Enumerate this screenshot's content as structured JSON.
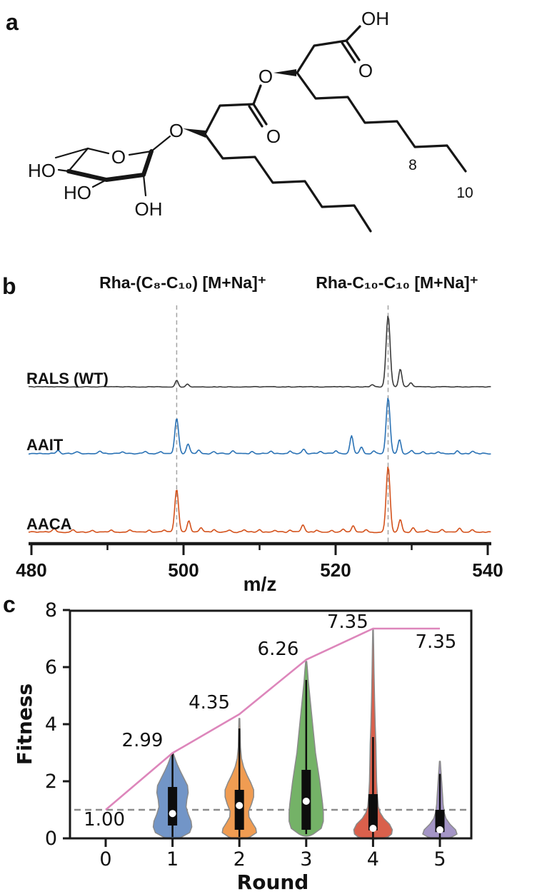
{
  "panel_a": {
    "panel_label": "a",
    "labels": {
      "acid_hydroxyl": "OH",
      "acid_carbonyl_oxygen": "O",
      "ester_oxygen": "O",
      "ester_carbonyl_oxygen": "O",
      "glycosidic_oxygen": "O",
      "ring_oxygen": "O",
      "hydroxyl_left": "HO",
      "hydroxyl_lower_left": "HO",
      "hydroxyl_bottom": "OH",
      "chain_carbon_8": "8",
      "chain_carbon_10": "10"
    }
  },
  "chart_data": [
    {
      "panel_label": "b",
      "type": "line",
      "xlabel": "m/z",
      "xlim": [
        480,
        540
      ],
      "x_major_ticks": [
        480,
        500,
        520,
        540
      ],
      "x_minor_ticks": [
        490,
        510,
        530
      ],
      "dashed_guides_mz": [
        499.1,
        526.9
      ],
      "peak_labels": [
        "Rha-(C₈-C₁₀) [M+Na]⁺",
        "Rha-C₁₀-C₁₀ [M+Na]⁺"
      ],
      "series": [
        {
          "name": "RALS (WT)",
          "color": "#3b3b3b",
          "noise_amp": 1.3,
          "peaks": [
            [
              499.1,
              9
            ],
            [
              500.5,
              4
            ],
            [
              524.8,
              3
            ],
            [
              526.9,
              100,
              2.8
            ],
            [
              528.5,
              25
            ],
            [
              529.9,
              6
            ]
          ]
        },
        {
          "name": "AAIT",
          "color": "#2a72b5",
          "noise_amp": 2.0,
          "peaks": [
            [
              483.5,
              4
            ],
            [
              486,
              3
            ],
            [
              489,
              4
            ],
            [
              492,
              3
            ],
            [
              495,
              3
            ],
            [
              497,
              3
            ],
            [
              499.1,
              49,
              2.6
            ],
            [
              500.6,
              14
            ],
            [
              502,
              5
            ],
            [
              504,
              3
            ],
            [
              506.5,
              4
            ],
            [
              509,
              3
            ],
            [
              511.5,
              3
            ],
            [
              514,
              4
            ],
            [
              515.8,
              6
            ],
            [
              518,
              3
            ],
            [
              520,
              4
            ],
            [
              522.1,
              25
            ],
            [
              523.4,
              9
            ],
            [
              525,
              4
            ],
            [
              526.9,
              79,
              2.7
            ],
            [
              528.4,
              20
            ],
            [
              530,
              5
            ],
            [
              531.5,
              3
            ],
            [
              533.5,
              3
            ],
            [
              536,
              4
            ],
            [
              538,
              3
            ]
          ]
        },
        {
          "name": "AACA",
          "color": "#d4521c",
          "noise_amp": 2.0,
          "peaks": [
            [
              483,
              5
            ],
            [
              485.5,
              3
            ],
            [
              488,
              3
            ],
            [
              490.5,
              3
            ],
            [
              493,
              3
            ],
            [
              495.5,
              3
            ],
            [
              497.5,
              3
            ],
            [
              499.1,
              60,
              2.6
            ],
            [
              500.7,
              16
            ],
            [
              502.3,
              6
            ],
            [
              504,
              3
            ],
            [
              506,
              3
            ],
            [
              508,
              3
            ],
            [
              510,
              3
            ],
            [
              512,
              3
            ],
            [
              514,
              3
            ],
            [
              515.7,
              10
            ],
            [
              517.5,
              3
            ],
            [
              519.5,
              3
            ],
            [
              521,
              4
            ],
            [
              522.3,
              9
            ],
            [
              524,
              4
            ],
            [
              526.9,
              92,
              2.7
            ],
            [
              528.5,
              18
            ],
            [
              530.2,
              6
            ],
            [
              532,
              3
            ],
            [
              534,
              3
            ],
            [
              536.3,
              5
            ],
            [
              538,
              3
            ]
          ]
        }
      ]
    },
    {
      "panel_label": "c",
      "type": "violin",
      "xlabel": "Round",
      "ylabel": "Fitness",
      "x_ticks": [
        "0",
        "1",
        "2",
        "3",
        "4",
        "5"
      ],
      "y_ticks": [
        "0",
        "2",
        "4",
        "6",
        "8"
      ],
      "ylim": [
        0,
        8
      ],
      "reference_line": {
        "y": 1.0,
        "style": "dashed",
        "color": "#8c8c8c"
      },
      "max_line": {
        "color": "#dd86bb",
        "points": [
          [
            0,
            1.0
          ],
          [
            1,
            2.99
          ],
          [
            2,
            4.35
          ],
          [
            3,
            6.26
          ],
          [
            4,
            7.35
          ],
          [
            5,
            7.35
          ]
        ]
      },
      "annotations": [
        {
          "label": "1.00",
          "x": -0.02,
          "y": 0.675
        },
        {
          "label": "2.99",
          "x": 0.55,
          "y": 3.45
        },
        {
          "label": "4.35",
          "x": 1.55,
          "y": 4.78
        },
        {
          "label": "6.26",
          "x": 2.58,
          "y": 6.65
        },
        {
          "label": "7.35",
          "x": 3.62,
          "y": 7.6
        },
        {
          "label": "7.35",
          "x": 4.94,
          "y": 6.9
        }
      ],
      "violins": [
        {
          "round": 1,
          "color": "#7295c7",
          "edge": "#8a8a8a",
          "tip": 2.99,
          "median": 0.87,
          "box": [
            0.45,
            1.8
          ],
          "whiskers": [
            0.05,
            2.99
          ],
          "profile": [
            [
              0.05,
              13
            ],
            [
              0.2,
              24
            ],
            [
              0.4,
              27
            ],
            [
              0.6,
              26
            ],
            [
              0.85,
              22
            ],
            [
              1.1,
              19
            ],
            [
              1.35,
              20
            ],
            [
              1.6,
              22
            ],
            [
              1.85,
              21
            ],
            [
              2.1,
              16
            ],
            [
              2.35,
              11
            ],
            [
              2.6,
              6.5
            ],
            [
              2.8,
              3.5
            ],
            [
              2.99,
              1
            ]
          ]
        },
        {
          "round": 2,
          "color": "#f09c52",
          "edge": "#8a8a8a",
          "tip": 4.2,
          "median": 1.15,
          "box": [
            0.3,
            1.7
          ],
          "whiskers": [
            0.05,
            3.85
          ],
          "profile": [
            [
              0.05,
              15
            ],
            [
              0.2,
              24
            ],
            [
              0.35,
              23
            ],
            [
              0.55,
              18
            ],
            [
              0.75,
              13.5
            ],
            [
              0.95,
              13
            ],
            [
              1.2,
              17
            ],
            [
              1.45,
              20
            ],
            [
              1.7,
              20
            ],
            [
              1.95,
              16
            ],
            [
              2.2,
              11
            ],
            [
              2.5,
              6
            ],
            [
              2.8,
              3
            ],
            [
              3.2,
              1.5
            ],
            [
              4.2,
              0.6
            ]
          ]
        },
        {
          "round": 3,
          "color": "#74b267",
          "edge": "#8a8a8a",
          "tip": 6.2,
          "median": 1.3,
          "box": [
            0.3,
            2.4
          ],
          "whiskers": [
            0.15,
            5.55
          ],
          "profile": [
            [
              0.15,
              10
            ],
            [
              0.35,
              21
            ],
            [
              0.6,
              24
            ],
            [
              0.9,
              24
            ],
            [
              1.2,
              23
            ],
            [
              1.6,
              21
            ],
            [
              2.0,
              19
            ],
            [
              2.5,
              16
            ],
            [
              3.0,
              13
            ],
            [
              3.5,
              11
            ],
            [
              4.0,
              9
            ],
            [
              4.5,
              7
            ],
            [
              5.0,
              5
            ],
            [
              5.5,
              3
            ],
            [
              5.9,
              1.8
            ],
            [
              6.2,
              0.7
            ]
          ]
        },
        {
          "round": 4,
          "color": "#d9604c",
          "edge": "#8a8a8a",
          "tip": 7.33,
          "median": 0.35,
          "box": [
            0.28,
            1.55
          ],
          "whiskers": [
            0.03,
            3.55
          ],
          "profile": [
            [
              0.05,
              21
            ],
            [
              0.15,
              26
            ],
            [
              0.3,
              27
            ],
            [
              0.5,
              23
            ],
            [
              0.7,
              15
            ],
            [
              0.9,
              10
            ],
            [
              1.1,
              7.5
            ],
            [
              1.5,
              6
            ],
            [
              2.0,
              5
            ],
            [
              2.6,
              4.5
            ],
            [
              3.3,
              4
            ],
            [
              4.0,
              3
            ],
            [
              4.8,
              2.2
            ],
            [
              5.8,
              1.4
            ],
            [
              6.8,
              0.8
            ],
            [
              7.33,
              0.4
            ]
          ]
        },
        {
          "round": 5,
          "color": "#a495c6",
          "edge": "#8a8a8a",
          "tip": 2.7,
          "median": 0.3,
          "box": [
            0.22,
            1.0
          ],
          "whiskers": [
            0.03,
            2.26
          ],
          "profile": [
            [
              0.05,
              17
            ],
            [
              0.15,
              24
            ],
            [
              0.3,
              22
            ],
            [
              0.5,
              14
            ],
            [
              0.7,
              8.5
            ],
            [
              0.9,
              6
            ],
            [
              1.2,
              4.5
            ],
            [
              1.5,
              3.8
            ],
            [
              1.8,
              3
            ],
            [
              2.1,
              2.2
            ],
            [
              2.4,
              1.4
            ],
            [
              2.7,
              0.6
            ]
          ]
        }
      ]
    }
  ]
}
